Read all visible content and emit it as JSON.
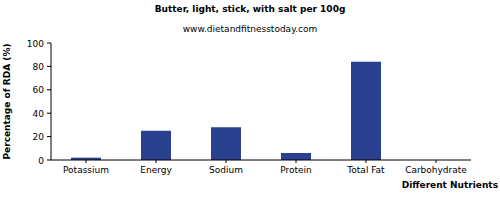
{
  "chart_data": {
    "type": "bar",
    "title": "Butter, light, stick, with salt per 100g",
    "subtitle": "www.dietandfitnesstoday.com",
    "x_label": "Different Nutrients",
    "y_label": "Percentage of RDA (%)",
    "categories": [
      "Potassium",
      "Energy",
      "Sodium",
      "Protein",
      "Total Fat",
      "Carbohydrate"
    ],
    "values": [
      2,
      25,
      28,
      6,
      84,
      0
    ],
    "color": "#2a4190",
    "ylim": [
      0,
      100
    ],
    "yticks": [
      0,
      20,
      40,
      60,
      80,
      100
    ],
    "grid": false
  }
}
